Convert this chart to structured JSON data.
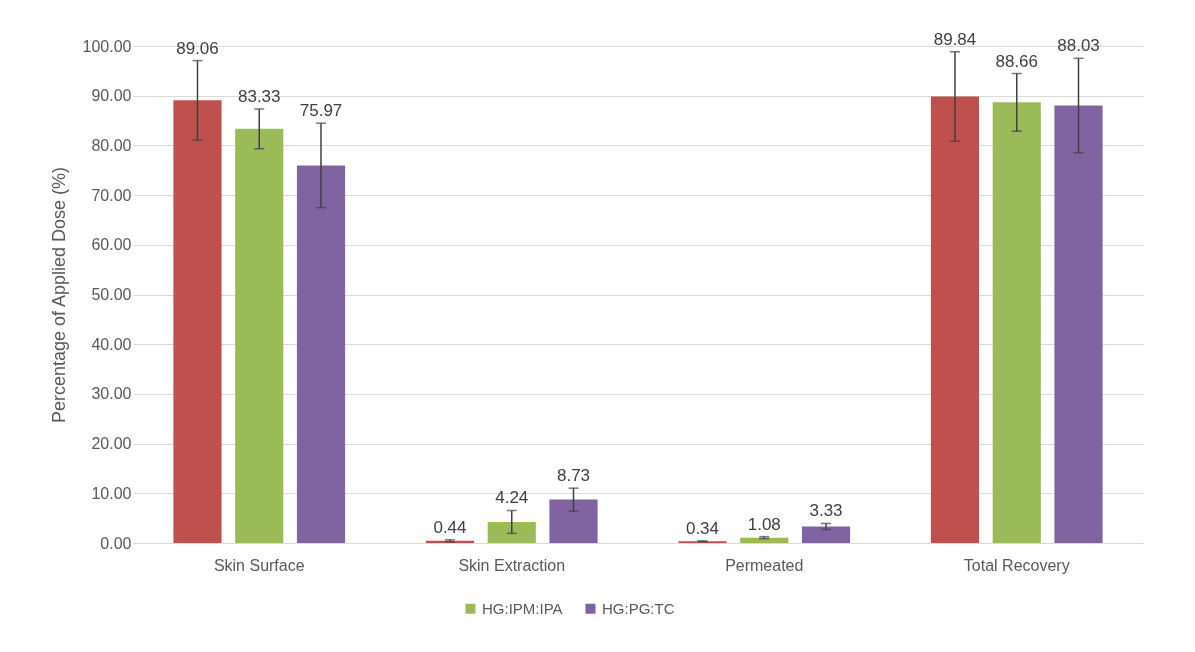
{
  "chart_data": {
    "type": "bar",
    "ylabel": "Percentage of Applied Dose (%)",
    "categories": [
      "Skin Surface",
      "Skin Extraction",
      "Permeated",
      "Total Recovery"
    ],
    "series": [
      {
        "color": "#c0504d",
        "values": [
          89.06,
          0.44,
          0.34,
          89.84
        ],
        "errors": [
          8,
          0.2,
          0.1,
          9
        ]
      },
      {
        "name": "HG:IPM:IPA",
        "color": "#9bbb59",
        "values": [
          83.33,
          4.24,
          1.08,
          88.66
        ],
        "errors": [
          4,
          2.3,
          0.2,
          5.8
        ]
      },
      {
        "name": "HG:PG:TC",
        "color": "#8064a2",
        "values": [
          75.97,
          8.73,
          3.33,
          88.03
        ],
        "errors": [
          8.5,
          2.3,
          0.6,
          9.5
        ]
      }
    ],
    "ylim": [
      0,
      100
    ],
    "yticks": [
      {
        "value": 0,
        "label": "0.00"
      },
      {
        "value": 10,
        "label": "10.00"
      },
      {
        "value": 20,
        "label": "20.00"
      },
      {
        "value": 30,
        "label": "30.00"
      },
      {
        "value": 40,
        "label": "40.00"
      },
      {
        "value": 50,
        "label": "50.00"
      },
      {
        "value": 60,
        "label": "60.00"
      },
      {
        "value": 70,
        "label": "70.00"
      },
      {
        "value": 80,
        "label": "80.00"
      },
      {
        "value": 90,
        "label": "90.00"
      },
      {
        "value": 100,
        "label": "100.00"
      }
    ],
    "grid": "y",
    "legend": "bottom",
    "data_labels": true
  }
}
